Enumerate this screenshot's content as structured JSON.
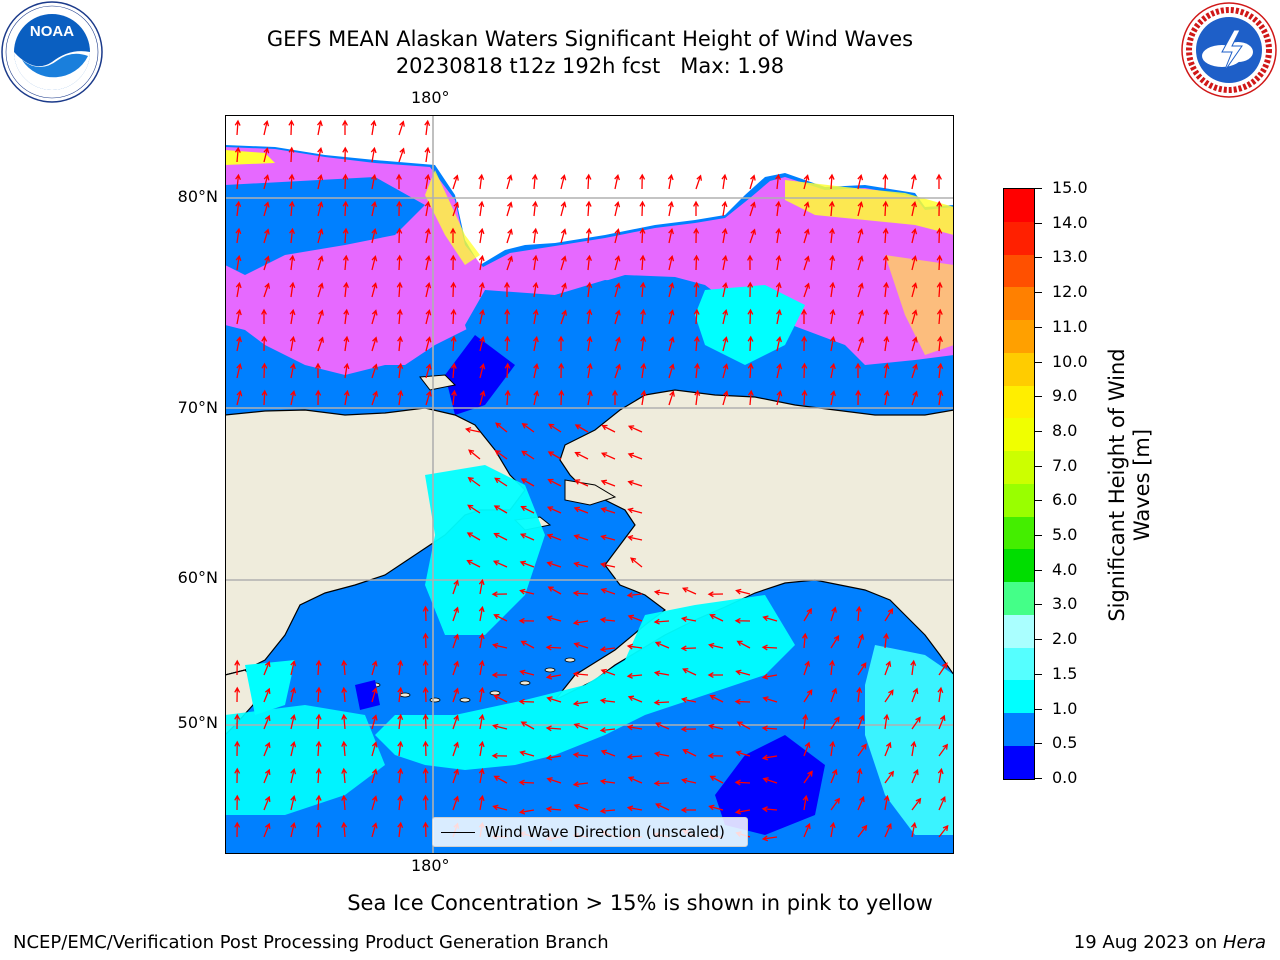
{
  "title": {
    "line1": "GEFS MEAN Alaskan Waters Significant Height of Wind Waves",
    "line2": "20230818 t12z 192h fcst   Max: 1.98"
  },
  "logos": {
    "left": {
      "text": "NOAA",
      "ring_text": "NATIONAL OCEANIC AND ATMOSPHERIC ADMINISTRATION · U.S. DEPARTMENT OF COMMERCE",
      "icon": "noaa-logo"
    },
    "right": {
      "ring_text": "NATIONAL WEATHER SERVICE",
      "icon": "nws-logo"
    }
  },
  "map": {
    "lat_labels": [
      "80°N",
      "70°N",
      "60°N",
      "50°N"
    ],
    "lon_label_top": "180°",
    "lon_label_bottom": "180°",
    "legend": "Wind Wave Direction (unscaled)",
    "colors": {
      "land": "#efecdc",
      "ocean_0_5": "#0000ff",
      "ocean_1_0": "#0080ff",
      "ocean_1_5": "#00ffff",
      "ocean_2_0": "#40ffff",
      "sea_ice": "#ff66ff",
      "sea_ice_high": "#ffff33",
      "arrows": "#ff0000",
      "grid": "#b0b0b0"
    }
  },
  "colorbar": {
    "title": "Significant Height of Wind Waves [m]",
    "ticks": [
      "15.0",
      "14.0",
      "13.0",
      "12.0",
      "11.0",
      "10.0",
      "9.0",
      "8.0",
      "7.0",
      "6.0",
      "5.0",
      "4.0",
      "3.0",
      "2.0",
      "1.5",
      "1.0",
      "0.5",
      "0.0"
    ],
    "colors_top_to_bottom": [
      "#ff0000",
      "#ff2000",
      "#ff5000",
      "#ff8000",
      "#ffa000",
      "#ffcc00",
      "#ffee00",
      "#f0ff00",
      "#ccff00",
      "#99ff00",
      "#44ee00",
      "#00dd00",
      "#44ff88",
      "#aaffff",
      "#55ffff",
      "#00ffff",
      "#0080ff",
      "#0000ff"
    ]
  },
  "note": "Sea Ice Concentration > 15% is shown in pink to yellow",
  "footer": {
    "left": "NCEP/EMC/Verification Post Processing Product Generation Branch",
    "right_prefix": "19 Aug 2023 on ",
    "right_host": "Hera"
  }
}
